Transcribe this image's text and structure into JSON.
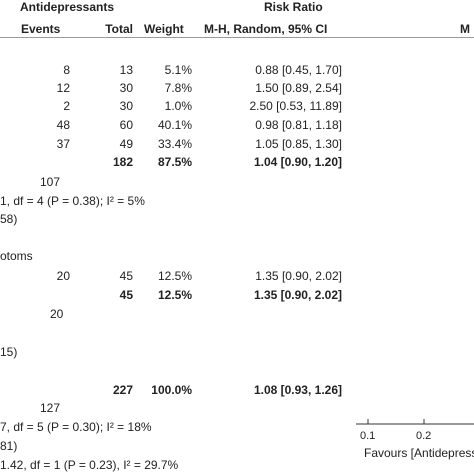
{
  "chart_data": {
    "type": "table",
    "header": {
      "group_left": "Antidepressants",
      "group_mid": "Risk Ratio",
      "group_right": "M",
      "col_events": "Events",
      "col_total": "Total",
      "col_weight": "Weight",
      "col_method": "M-H, Random, 95% CI",
      "col_method_right": "M"
    },
    "group1": {
      "rows": [
        {
          "events": "8",
          "total": "13",
          "weight": "5.1%",
          "ci": "0.88 [0.45, 1.70]"
        },
        {
          "events": "12",
          "total": "30",
          "weight": "7.8%",
          "ci": "1.50 [0.89, 2.54]"
        },
        {
          "events": "2",
          "total": "30",
          "weight": "1.0%",
          "ci": "2.50 [0.53, 11.89]"
        },
        {
          "events": "48",
          "total": "60",
          "weight": "40.1%",
          "ci": "0.98 [0.81, 1.18]"
        },
        {
          "events": "37",
          "total": "49",
          "weight": "33.4%",
          "ci": "1.05 [0.85, 1.30]"
        }
      ],
      "subtotal": {
        "total": "182",
        "weight": "87.5%",
        "ci": "1.04 [0.90, 1.20]"
      },
      "events_total": "107",
      "heterogeneity": "1, df = 4 (P = 0.38); I² = 5%",
      "overall_effect": "58)"
    },
    "group2": {
      "title": "otoms",
      "rows": [
        {
          "events": "20",
          "total": "45",
          "weight": "12.5%",
          "ci": "1.35 [0.90, 2.02]"
        }
      ],
      "subtotal": {
        "total": "45",
        "weight": "12.5%",
        "ci": "1.35 [0.90, 2.02]"
      },
      "events_total": "20",
      "overall_effect": "15)"
    },
    "overall": {
      "total": "227",
      "weight": "100.0%",
      "ci": "1.08 [0.93, 1.26]",
      "events_total": "127",
      "heterogeneity": "7, df = 5 (P = 0.30); I² = 18%",
      "overall_effect": "81)",
      "subgroup_diff": "1.42, df = 1 (P = 0.23), I² = 29.7%"
    },
    "axis": {
      "scale": "log",
      "ticks": [
        "0.1",
        "0.2"
      ],
      "favours_left": "Favours [Antidepress"
    }
  }
}
